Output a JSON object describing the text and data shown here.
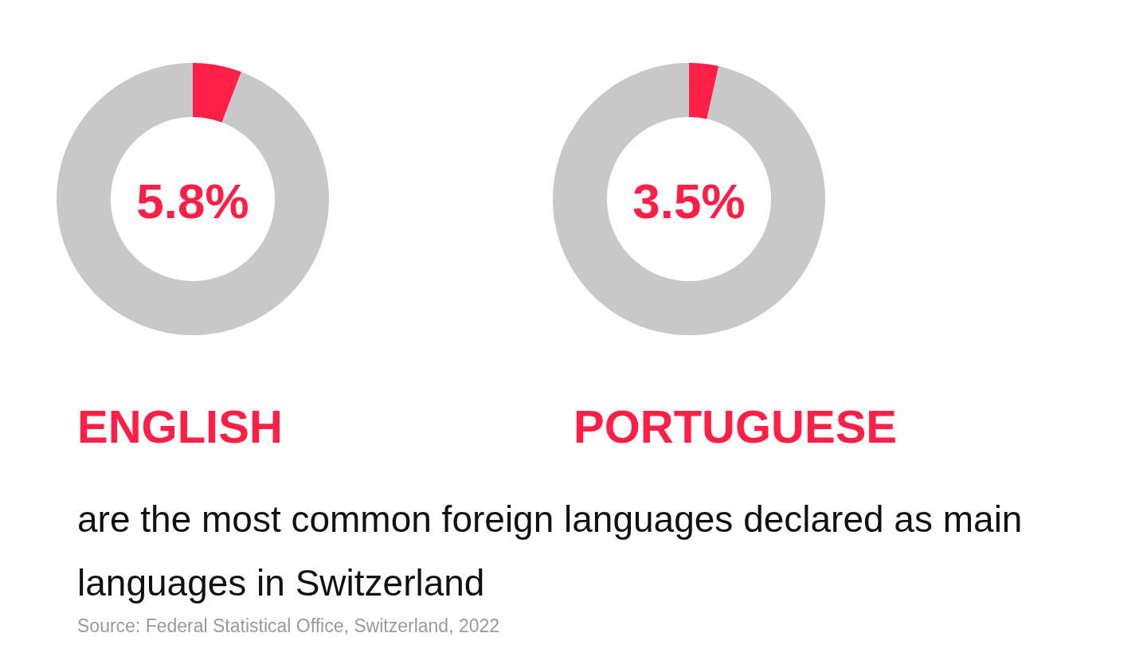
{
  "chart_data": [
    {
      "type": "donut",
      "title": "ENGLISH",
      "categories": [
        null,
        null
      ],
      "values": [
        5.8,
        94.2
      ],
      "colors": [
        "#ff2047",
        "#c8c8c8"
      ],
      "annotations": [
        "5.8%"
      ]
    },
    {
      "type": "donut",
      "title": "PORTUGUESE",
      "categories": [
        null,
        null
      ],
      "values": [
        3.5,
        96.5
      ],
      "colors": [
        "#ff2047",
        "#c8c8c8"
      ],
      "annotations": [
        "3.5%"
      ]
    },
    {
      "type": "other",
      "annotations": [
        "are the most common foreign languages declared as main languages in Switzerland",
        "Source: Federal Statistical Office, Switzerland, 2022"
      ]
    }
  ]
}
